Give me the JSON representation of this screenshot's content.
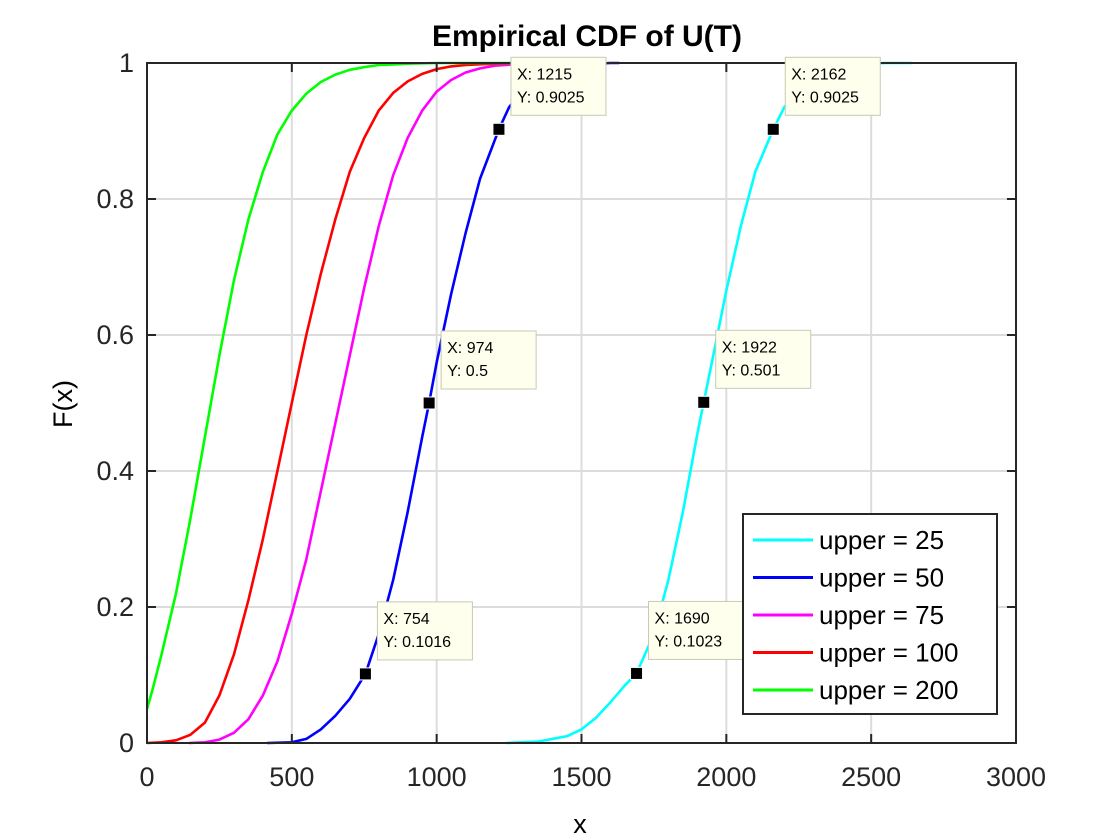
{
  "chart_data": {
    "type": "line",
    "title": "Empirical CDF of U(T)",
    "xlabel": "x",
    "ylabel": "F(x)",
    "xlim": [
      0,
      3000
    ],
    "ylim": [
      0,
      1
    ],
    "xticks": [
      0,
      500,
      1000,
      1500,
      2000,
      2500,
      3000
    ],
    "yticks": [
      0,
      0.2,
      0.4,
      0.6,
      0.8,
      1
    ],
    "xtick_labels": [
      "0",
      "500",
      "1000",
      "1500",
      "2000",
      "2500",
      "3000"
    ],
    "ytick_labels": [
      "0",
      "0.2",
      "0.4",
      "0.6",
      "0.8",
      "1"
    ],
    "grid": true,
    "legend_position": "bottom-right",
    "series": [
      {
        "name": "upper = 25",
        "color": "#00ffff",
        "x": [
          1240,
          1350,
          1450,
          1500,
          1550,
          1600,
          1650,
          1690,
          1750,
          1800,
          1850,
          1900,
          1922,
          1950,
          2000,
          2050,
          2100,
          2162,
          2200,
          2250,
          2300,
          2350,
          2400,
          2450,
          2500,
          2550,
          2640
        ],
        "y": [
          0,
          0.002,
          0.01,
          0.02,
          0.037,
          0.06,
          0.085,
          0.1023,
          0.16,
          0.24,
          0.34,
          0.455,
          0.501,
          0.56,
          0.665,
          0.76,
          0.84,
          0.9025,
          0.935,
          0.962,
          0.978,
          0.988,
          0.994,
          0.997,
          0.999,
          1.0,
          1.0
        ]
      },
      {
        "name": "upper = 50",
        "color": "#0000ff",
        "x": [
          415,
          500,
          550,
          600,
          650,
          700,
          754,
          800,
          850,
          900,
          950,
          974,
          1000,
          1050,
          1100,
          1150,
          1215,
          1250,
          1300,
          1350,
          1400,
          1450,
          1500,
          1550,
          1600,
          1630
        ],
        "y": [
          0,
          0.001,
          0.006,
          0.02,
          0.04,
          0.065,
          0.1016,
          0.16,
          0.24,
          0.34,
          0.45,
          0.5,
          0.56,
          0.66,
          0.75,
          0.83,
          0.9025,
          0.935,
          0.962,
          0.978,
          0.988,
          0.994,
          0.997,
          0.999,
          1.0,
          1.0
        ]
      },
      {
        "name": "upper = 75",
        "color": "#ff00ff",
        "x": [
          145,
          200,
          250,
          300,
          350,
          400,
          450,
          500,
          550,
          600,
          650,
          700,
          750,
          800,
          850,
          900,
          950,
          1000,
          1050,
          1100,
          1150,
          1200,
          1300,
          1400,
          1560
        ],
        "y": [
          0,
          0.001,
          0.005,
          0.015,
          0.035,
          0.07,
          0.12,
          0.19,
          0.27,
          0.37,
          0.47,
          0.57,
          0.67,
          0.76,
          0.835,
          0.89,
          0.93,
          0.958,
          0.975,
          0.986,
          0.992,
          0.996,
          0.999,
          1.0,
          1.0
        ]
      },
      {
        "name": "upper = 100",
        "color": "#ff0000",
        "x": [
          0,
          50,
          100,
          150,
          200,
          250,
          300,
          350,
          400,
          450,
          500,
          550,
          600,
          650,
          700,
          750,
          800,
          850,
          900,
          950,
          1000,
          1050,
          1100,
          1200,
          1300,
          1400
        ],
        "y": [
          0,
          0.001,
          0.004,
          0.012,
          0.03,
          0.07,
          0.13,
          0.21,
          0.3,
          0.4,
          0.5,
          0.6,
          0.69,
          0.77,
          0.84,
          0.89,
          0.93,
          0.956,
          0.973,
          0.984,
          0.991,
          0.995,
          0.997,
          0.999,
          1.0,
          1.0
        ]
      },
      {
        "name": "upper = 200",
        "color": "#00ff00",
        "x": [
          0,
          20,
          50,
          100,
          150,
          200,
          250,
          300,
          350,
          400,
          450,
          500,
          550,
          600,
          650,
          700,
          750,
          800,
          850,
          900,
          1000,
          1100,
          1200,
          1300,
          1400
        ],
        "y": [
          0.05,
          0.08,
          0.13,
          0.22,
          0.33,
          0.45,
          0.57,
          0.68,
          0.77,
          0.84,
          0.895,
          0.93,
          0.955,
          0.972,
          0.983,
          0.99,
          0.994,
          0.997,
          0.998,
          0.999,
          1.0,
          1.0,
          1.0,
          1.0,
          1.0
        ]
      }
    ],
    "datatips": [
      {
        "x": 1215,
        "y": 0.9025,
        "label_x": "X: 1215",
        "label_y": "Y: 0.9025"
      },
      {
        "x": 974,
        "y": 0.5,
        "label_x": "X: 974",
        "label_y": "Y: 0.5"
      },
      {
        "x": 754,
        "y": 0.1016,
        "label_x": "X: 754",
        "label_y": "Y: 0.1016"
      },
      {
        "x": 2162,
        "y": 0.9025,
        "label_x": "X: 2162",
        "label_y": "Y: 0.9025"
      },
      {
        "x": 1922,
        "y": 0.501,
        "label_x": "X: 1922",
        "label_y": "Y: 0.501"
      },
      {
        "x": 1690,
        "y": 0.1023,
        "label_x": "X: 1690",
        "label_y": "Y: 0.1023"
      }
    ]
  }
}
